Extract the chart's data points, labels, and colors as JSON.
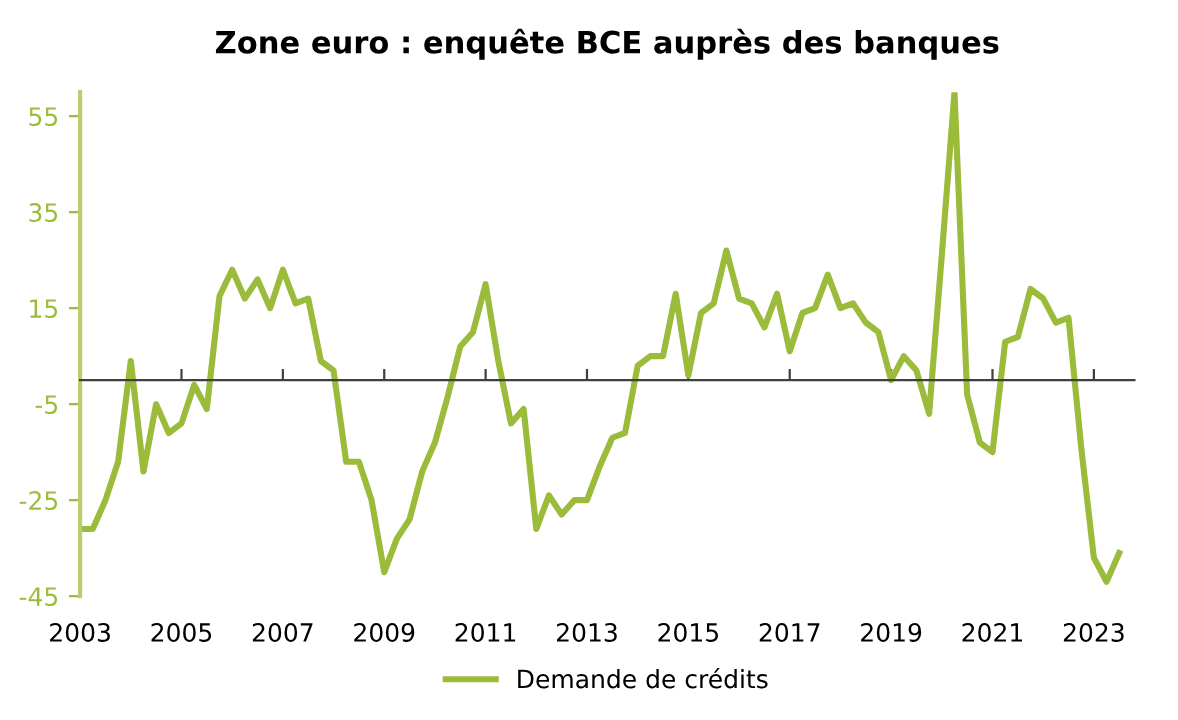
{
  "chart_data": {
    "type": "line",
    "title": "Zone euro : enquête BCE auprès des banques",
    "x": [
      2003,
      2003.25,
      2003.5,
      2003.75,
      2004,
      2004.25,
      2004.5,
      2004.75,
      2005,
      2005.25,
      2005.5,
      2005.75,
      2006,
      2006.25,
      2006.5,
      2006.75,
      2007,
      2007.25,
      2007.5,
      2007.75,
      2008,
      2008.25,
      2008.5,
      2008.75,
      2009,
      2009.25,
      2009.5,
      2009.75,
      2010,
      2010.25,
      2010.5,
      2010.75,
      2011,
      2011.25,
      2011.5,
      2011.75,
      2012,
      2012.25,
      2012.5,
      2012.75,
      2013,
      2013.25,
      2013.5,
      2013.75,
      2014,
      2014.25,
      2014.5,
      2014.75,
      2015,
      2015.25,
      2015.5,
      2015.75,
      2016,
      2016.25,
      2016.5,
      2016.75,
      2017,
      2017.25,
      2017.5,
      2017.75,
      2018,
      2018.25,
      2018.5,
      2018.75,
      2019,
      2019.25,
      2019.5,
      2019.75,
      2020,
      2020.25,
      2020.5,
      2020.75,
      2021,
      2021.25,
      2021.5,
      2021.75,
      2022,
      2022.25,
      2022.5,
      2022.75,
      2023,
      2023.25,
      2023.5
    ],
    "series": [
      {
        "name": "Demande de crédits",
        "color": "#9bbb3b",
        "values": [
          -31,
          -31,
          -25,
          -17,
          4,
          -19,
          -5,
          -11,
          -9,
          -1,
          -6,
          17.5,
          23,
          17,
          21,
          15,
          23,
          16,
          17,
          4,
          2,
          -17,
          -17,
          -25,
          -40,
          -33,
          -29,
          -19,
          -13,
          -3.5,
          7,
          10,
          20,
          4,
          -9,
          -6,
          -31,
          -24,
          -28,
          -25,
          -25,
          -18,
          -12,
          -11,
          3,
          5,
          5,
          18,
          1,
          14,
          16,
          27,
          17,
          16,
          11,
          18,
          6,
          14,
          15,
          22,
          15,
          16,
          12,
          10,
          0,
          5,
          2,
          -7,
          26,
          60,
          -3,
          -13,
          -15,
          8,
          9,
          19,
          17,
          12,
          13,
          -14,
          -37,
          -42,
          -36
        ]
      }
    ],
    "xlim": [
      2003,
      2023.8
    ],
    "xticks": [
      2003,
      2005,
      2007,
      2009,
      2011,
      2013,
      2015,
      2017,
      2019,
      2021,
      2023
    ],
    "ylim": [
      -45,
      60
    ],
    "yticks": [
      -45,
      -25,
      -5,
      15,
      35,
      55
    ],
    "grid": false,
    "legend": "bottom"
  }
}
